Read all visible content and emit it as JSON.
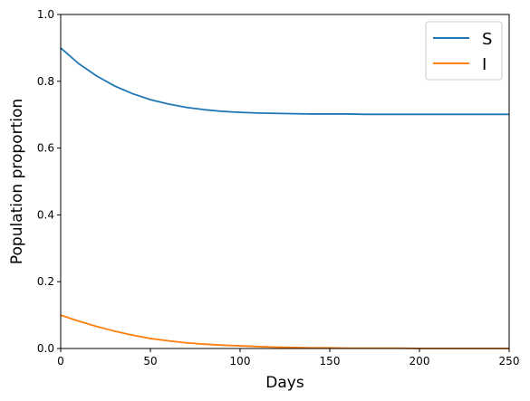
{
  "chart_data": {
    "type": "line",
    "title": "",
    "xlabel": "Days",
    "ylabel": "Population proportion",
    "xlim": [
      0,
      250
    ],
    "ylim": [
      0,
      1.0
    ],
    "xticks": [
      0,
      50,
      100,
      150,
      200,
      250
    ],
    "xtick_labels": [
      "0",
      "50",
      "100",
      "150",
      "200",
      "250"
    ],
    "yticks": [
      0,
      0.2,
      0.4,
      0.6,
      0.8,
      1.0
    ],
    "ytick_labels": [
      "0.0",
      "0.2",
      "0.4",
      "0.6",
      "0.8",
      "1.0"
    ],
    "grid": false,
    "legend_position": "top-right",
    "x": [
      0,
      10,
      20,
      30,
      40,
      50,
      60,
      70,
      80,
      90,
      100,
      110,
      120,
      130,
      140,
      150,
      160,
      170,
      180,
      190,
      200,
      210,
      220,
      230,
      240,
      250
    ],
    "series": [
      {
        "name": "S",
        "color": "#1f77b4",
        "values": [
          0.9,
          0.853,
          0.816,
          0.786,
          0.763,
          0.745,
          0.732,
          0.722,
          0.715,
          0.71,
          0.707,
          0.705,
          0.704,
          0.703,
          0.702,
          0.702,
          0.702,
          0.701,
          0.701,
          0.701,
          0.701,
          0.701,
          0.701,
          0.701,
          0.701,
          0.701
        ]
      },
      {
        "name": "I",
        "color": "#ff7f0e",
        "values": [
          0.1,
          0.082,
          0.066,
          0.052,
          0.04,
          0.03,
          0.023,
          0.017,
          0.013,
          0.01,
          0.008,
          0.006,
          0.004,
          0.003,
          0.002,
          0.002,
          0.001,
          0.001,
          0.001,
          0.001,
          0.0,
          0.0,
          0.0,
          0.0,
          0.0,
          0.0
        ]
      }
    ]
  }
}
